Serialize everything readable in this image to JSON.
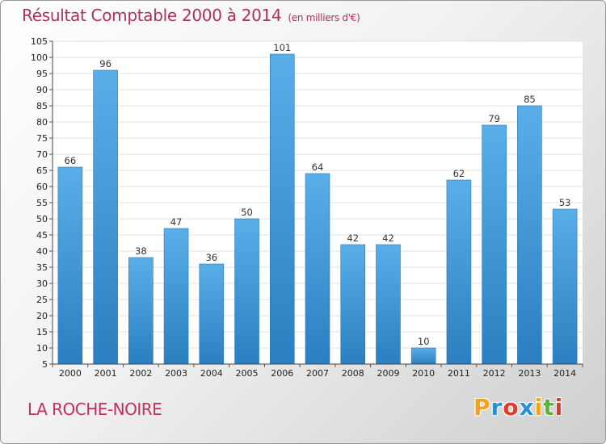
{
  "header": {
    "title": "Résultat Comptable 2000 à 2014",
    "subtitle": "(en milliers d'€)"
  },
  "footer": {
    "commune": "LA ROCHE-NOIRE",
    "brand": [
      "P",
      "r",
      "o",
      "x",
      "i",
      "t",
      "i"
    ],
    "brand_colors": [
      "#f2a31a",
      "#2b8fd6",
      "#e03a2d",
      "#2b8fd6",
      "#f2a31a",
      "#5cb531",
      "#e03a2d"
    ]
  },
  "chart_data": {
    "type": "bar",
    "title": "Résultat Comptable 2000 à 2014",
    "subtitle": "(en milliers d'€)",
    "xlabel": "",
    "ylabel": "",
    "categories": [
      "2000",
      "2001",
      "2002",
      "2003",
      "2004",
      "2005",
      "2006",
      "2007",
      "2008",
      "2009",
      "2010",
      "2011",
      "2012",
      "2013",
      "2014"
    ],
    "values": [
      66,
      96,
      38,
      47,
      36,
      50,
      101,
      64,
      42,
      42,
      10,
      62,
      79,
      85,
      53
    ],
    "ylim": [
      5,
      105
    ],
    "yticks": [
      5,
      10,
      15,
      20,
      25,
      30,
      35,
      40,
      45,
      50,
      55,
      60,
      65,
      70,
      75,
      80,
      85,
      90,
      95,
      100,
      105
    ],
    "grid": true,
    "bar_color_top": "#5aaee8",
    "bar_color_bottom": "#2a7fc0"
  }
}
